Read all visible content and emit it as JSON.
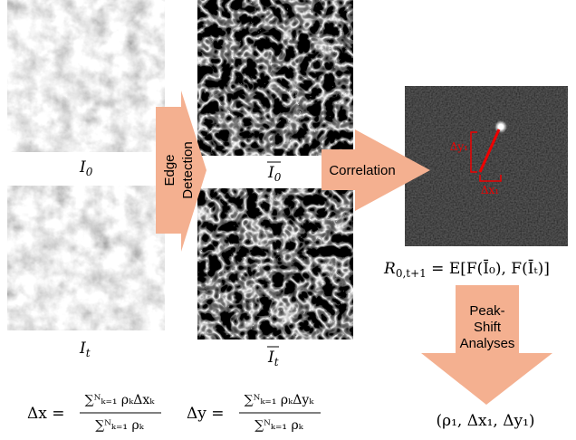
{
  "inputs": {
    "first_label": {
      "base": "I",
      "sub": "0"
    },
    "last_label": {
      "base": "I",
      "sub": "t"
    }
  },
  "edges": {
    "first_label": {
      "base": "I",
      "sub": "0"
    },
    "last_label": {
      "base": "I",
      "sub": "t"
    }
  },
  "arrows": {
    "edge_detection": [
      "Edge",
      "Detection"
    ],
    "correlation": "Correlation",
    "peak_shift": [
      "Peak-",
      "Shift",
      "Analyses"
    ]
  },
  "correlation_map": {
    "dy_label": "Δy₁",
    "dx_label": "Δx₁",
    "formula": {
      "lhs": "R",
      "lhs_sub": "0,t+1",
      "rhs": " = E[F(Ī₀), F(Īₜ)]"
    }
  },
  "result": "(ρ₁, Δx₁, Δy₁)",
  "formulas": {
    "dx": {
      "lhs": "Δx =",
      "num": "∑ᴺₖ₌₁ ρₖΔxₖ",
      "den": "∑ᴺₖ₌₁ ρₖ"
    },
    "dy": {
      "lhs": "Δy =",
      "num": "∑ᴺₖ₌₁ ρₖΔyₖ",
      "den": "∑ᴺₖ₌₁ ρₖ"
    }
  }
}
